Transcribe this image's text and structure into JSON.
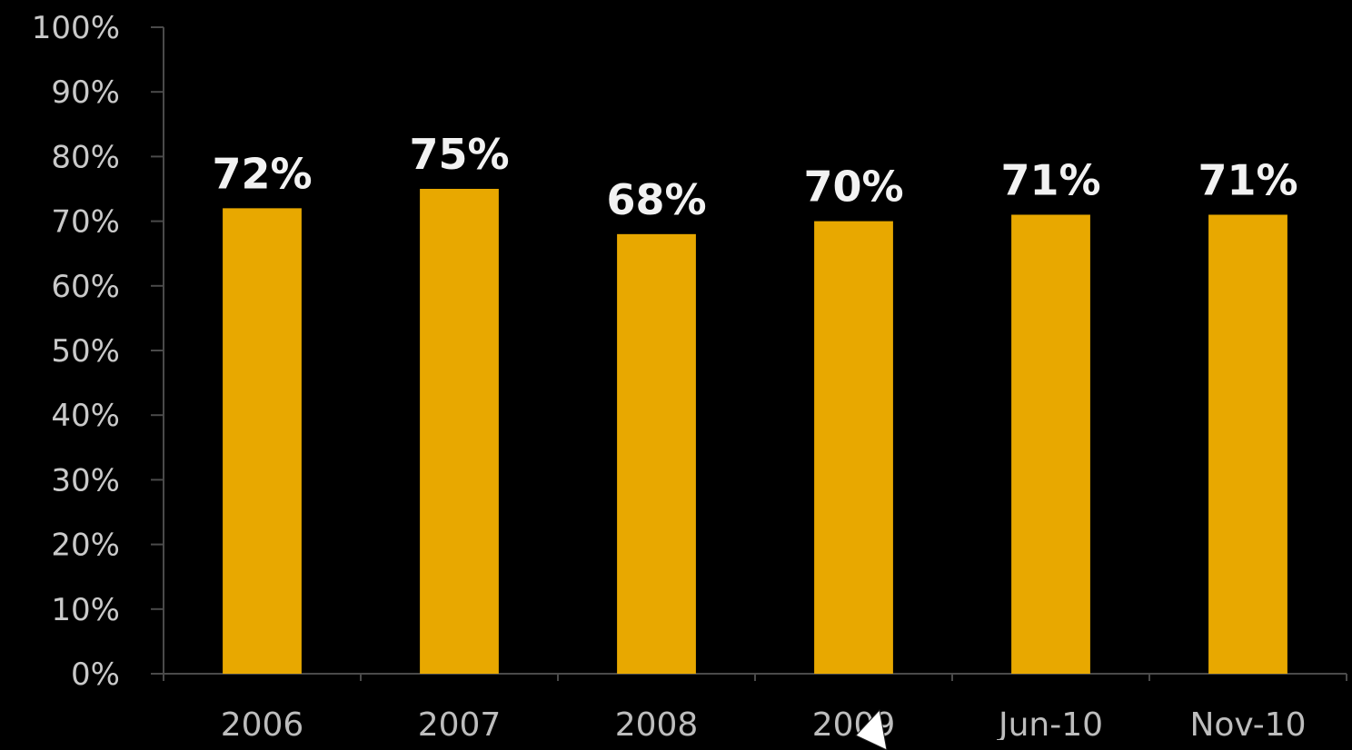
{
  "chart_data": {
    "type": "bar",
    "categories": [
      "2006",
      "2007",
      "2008",
      "2009",
      "Jun-10",
      "Nov-10"
    ],
    "values": [
      72,
      75,
      68,
      70,
      71,
      71
    ],
    "data_labels": [
      "72%",
      "75%",
      "68%",
      "70%",
      "71%",
      "71%"
    ],
    "title": "",
    "xlabel": "",
    "ylabel": "",
    "ylim": [
      0,
      100
    ],
    "yticks": [
      0,
      10,
      20,
      30,
      40,
      50,
      60,
      70,
      80,
      90,
      100
    ],
    "ytick_labels": [
      "0%",
      "10%",
      "20%",
      "30%",
      "40%",
      "50%",
      "60%",
      "70%",
      "80%",
      "90%",
      "100%"
    ],
    "grid": false,
    "legend": "none",
    "bar_color": "#e8a800",
    "background_color": "#000000"
  },
  "overlay": {
    "cursor_icon": "mouse-pointer-arrow"
  }
}
